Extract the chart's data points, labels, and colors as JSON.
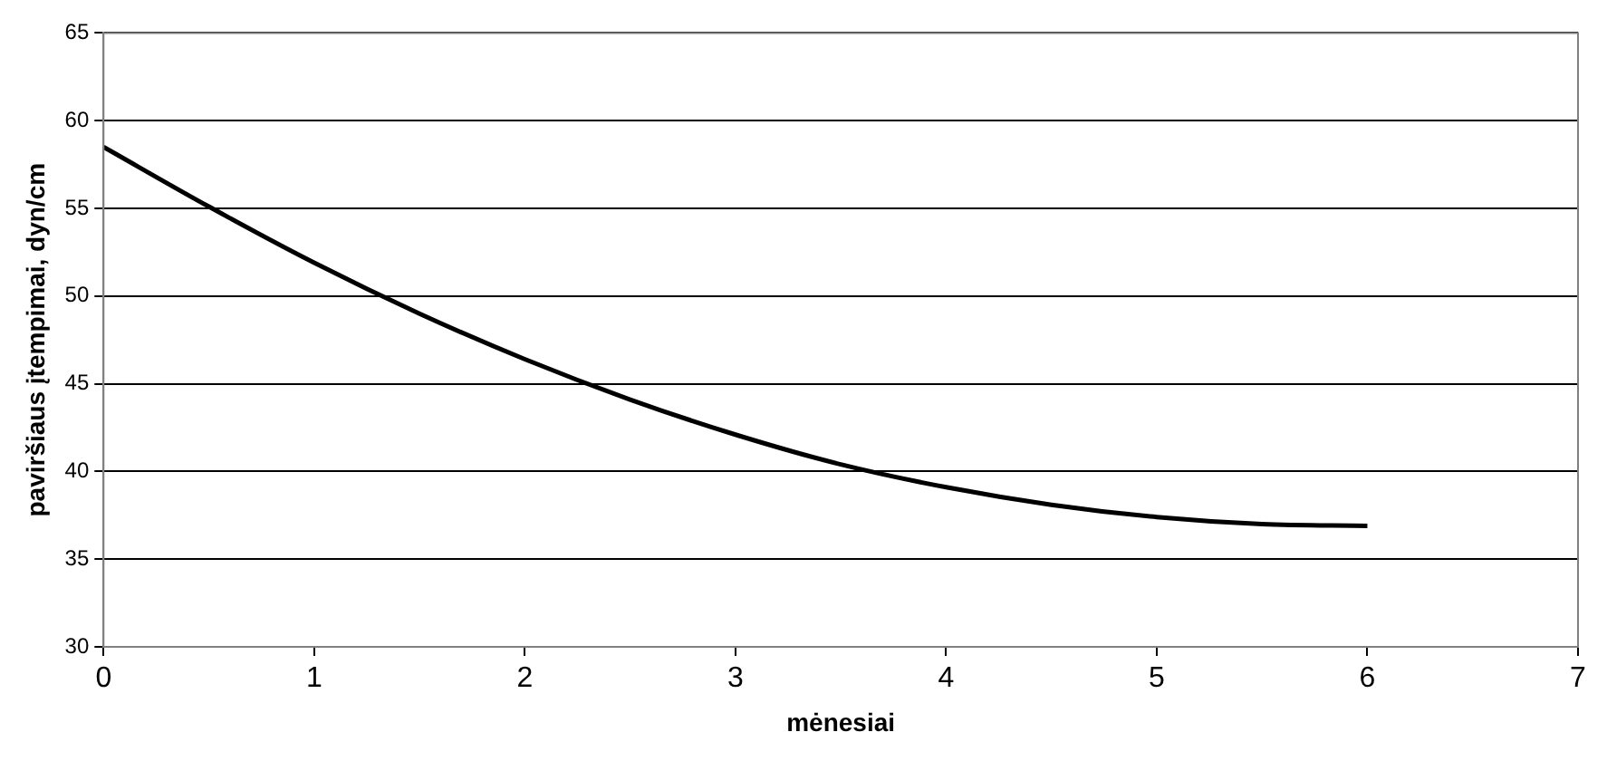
{
  "chart_data": {
    "type": "line",
    "xlabel": "mėnesiai",
    "ylabel": "paviršiaus įtempimai, dyn/cm",
    "x": [
      0,
      0.5,
      1,
      1.5,
      2,
      2.5,
      3,
      3.5,
      4,
      4.5,
      5,
      5.5,
      6
    ],
    "series": [
      {
        "color": "#000000",
        "values": [
          58.5,
          55.1,
          51.9,
          49.0,
          46.4,
          44.1,
          42.1,
          40.4,
          39.1,
          38.1,
          37.4,
          37.0,
          36.9
        ]
      }
    ],
    "xlim": [
      0,
      7
    ],
    "xticks": [
      0,
      1,
      2,
      3,
      4,
      5,
      6,
      7
    ],
    "ylim": [
      30,
      65
    ],
    "yticks": [
      30,
      35,
      40,
      45,
      50,
      55,
      60,
      65
    ],
    "grid": "y",
    "legend": false,
    "marker": "none",
    "line_style": "solid"
  }
}
